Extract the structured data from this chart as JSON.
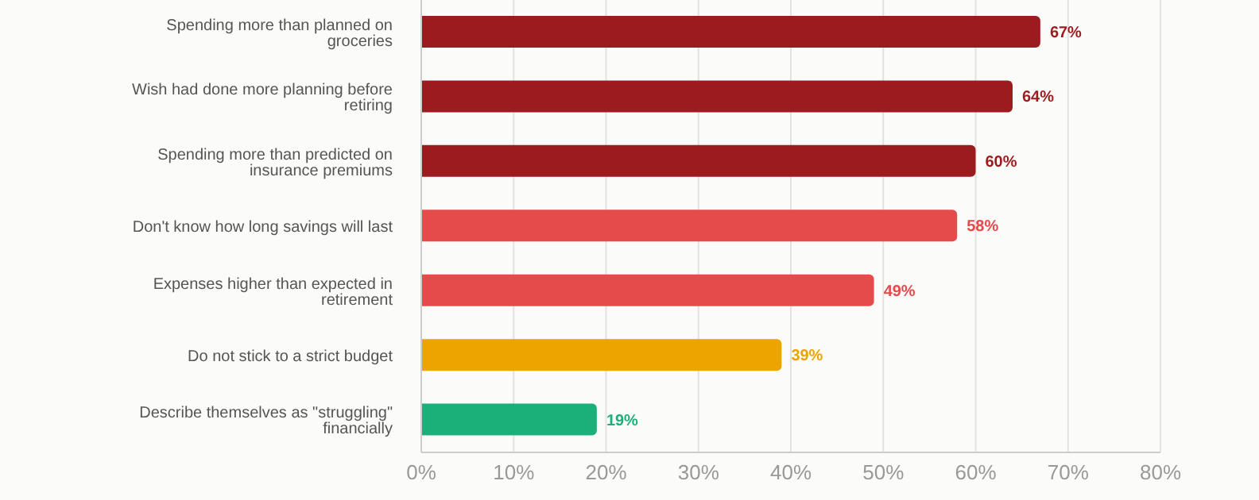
{
  "chart_data": {
    "type": "bar",
    "orientation": "horizontal",
    "categories": [
      "Spending more than planned on groceries",
      "Wish had done more planning before retiring",
      "Spending more than predicted on insurance premiums",
      "Don't know how long savings will last",
      "Expenses higher than expected in retirement",
      "Do not stick to a strict budget",
      "Describe themselves as \"struggling\" financially"
    ],
    "values": [
      67,
      64,
      60,
      58,
      49,
      39,
      19
    ],
    "colors": [
      "#9b1b1e",
      "#9b1b1e",
      "#9b1b1e",
      "#e54b4b",
      "#e54b4b",
      "#eca400",
      "#1bb07a"
    ],
    "value_labels": [
      "67%",
      "64%",
      "60%",
      "58%",
      "49%",
      "39%",
      "19%"
    ],
    "xlim": [
      0,
      80
    ],
    "xticks": [
      {
        "value": 0,
        "label": "0%"
      },
      {
        "value": 10,
        "label": "10%"
      },
      {
        "value": 20,
        "label": "20%"
      },
      {
        "value": 30,
        "label": "30%"
      },
      {
        "value": 40,
        "label": "40%"
      },
      {
        "value": 50,
        "label": "50%"
      },
      {
        "value": 60,
        "label": "60%"
      },
      {
        "value": 70,
        "label": "70%"
      },
      {
        "value": 80,
        "label": "80%"
      }
    ],
    "grid": "x"
  }
}
